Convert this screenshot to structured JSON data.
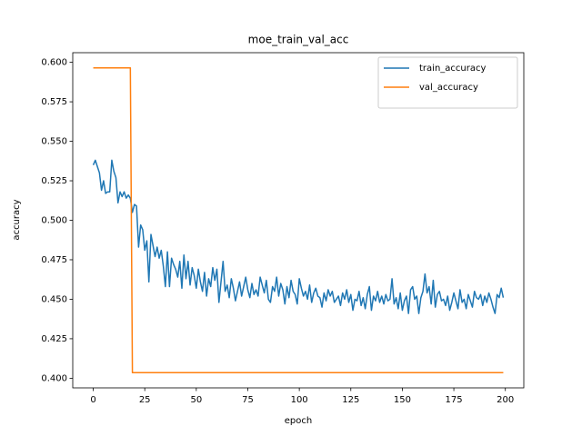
{
  "chart_data": {
    "type": "line",
    "title": "moe_train_val_acc",
    "x_label": "epoch",
    "y_label": "accuracy",
    "x": [
      0,
      1,
      2,
      3,
      4,
      5,
      6,
      7,
      8,
      9,
      10,
      11,
      12,
      13,
      14,
      15,
      16,
      17,
      18,
      19,
      20,
      21,
      22,
      23,
      24,
      25,
      26,
      27,
      28,
      29,
      30,
      31,
      32,
      33,
      34,
      35,
      36,
      37,
      38,
      39,
      40,
      41,
      42,
      43,
      44,
      45,
      46,
      47,
      48,
      49,
      50,
      51,
      52,
      53,
      54,
      55,
      56,
      57,
      58,
      59,
      60,
      61,
      62,
      63,
      64,
      65,
      66,
      67,
      68,
      69,
      70,
      71,
      72,
      73,
      74,
      75,
      76,
      77,
      78,
      79,
      80,
      81,
      82,
      83,
      84,
      85,
      86,
      87,
      88,
      89,
      90,
      91,
      92,
      93,
      94,
      95,
      96,
      97,
      98,
      99,
      100,
      101,
      102,
      103,
      104,
      105,
      106,
      107,
      108,
      109,
      110,
      111,
      112,
      113,
      114,
      115,
      116,
      117,
      118,
      119,
      120,
      121,
      122,
      123,
      124,
      125,
      126,
      127,
      128,
      129,
      130,
      131,
      132,
      133,
      134,
      135,
      136,
      137,
      138,
      139,
      140,
      141,
      142,
      143,
      144,
      145,
      146,
      147,
      148,
      149,
      150,
      151,
      152,
      153,
      154,
      155,
      156,
      157,
      158,
      159,
      160,
      161,
      162,
      163,
      164,
      165,
      166,
      167,
      168,
      169,
      170,
      171,
      172,
      173,
      174,
      175,
      176,
      177,
      178,
      179,
      180,
      181,
      182,
      183,
      184,
      185,
      186,
      187,
      188,
      189,
      190,
      191,
      192,
      193,
      194,
      195,
      196,
      197,
      198,
      199
    ],
    "series": [
      {
        "name": "train_accuracy",
        "color": "#1f77b4",
        "values": [
          0.535,
          0.538,
          0.534,
          0.53,
          0.519,
          0.525,
          0.517,
          0.518,
          0.518,
          0.538,
          0.531,
          0.527,
          0.511,
          0.518,
          0.515,
          0.518,
          0.514,
          0.516,
          0.514,
          0.505,
          0.51,
          0.509,
          0.483,
          0.497,
          0.494,
          0.481,
          0.487,
          0.461,
          0.491,
          0.484,
          0.477,
          0.483,
          0.476,
          0.481,
          0.471,
          0.458,
          0.48,
          0.458,
          0.476,
          0.472,
          0.469,
          0.464,
          0.474,
          0.457,
          0.478,
          0.463,
          0.474,
          0.459,
          0.47,
          0.465,
          0.457,
          0.469,
          0.461,
          0.455,
          0.467,
          0.452,
          0.463,
          0.458,
          0.47,
          0.462,
          0.469,
          0.448,
          0.461,
          0.474,
          0.455,
          0.459,
          0.451,
          0.463,
          0.457,
          0.449,
          0.455,
          0.461,
          0.452,
          0.458,
          0.464,
          0.456,
          0.451,
          0.46,
          0.453,
          0.456,
          0.452,
          0.464,
          0.459,
          0.454,
          0.462,
          0.45,
          0.448,
          0.458,
          0.455,
          0.464,
          0.452,
          0.46,
          0.456,
          0.447,
          0.458,
          0.451,
          0.462,
          0.455,
          0.453,
          0.447,
          0.463,
          0.457,
          0.452,
          0.455,
          0.45,
          0.459,
          0.448,
          0.454,
          0.457,
          0.452,
          0.451,
          0.445,
          0.454,
          0.449,
          0.456,
          0.452,
          0.455,
          0.448,
          0.45,
          0.452,
          0.446,
          0.454,
          0.45,
          0.456,
          0.448,
          0.453,
          0.443,
          0.45,
          0.449,
          0.455,
          0.446,
          0.451,
          0.444,
          0.453,
          0.458,
          0.443,
          0.452,
          0.449,
          0.455,
          0.448,
          0.452,
          0.447,
          0.453,
          0.449,
          0.45,
          0.463,
          0.447,
          0.451,
          0.444,
          0.454,
          0.443,
          0.449,
          0.452,
          0.441,
          0.456,
          0.458,
          0.45,
          0.452,
          0.441,
          0.451,
          0.455,
          0.466,
          0.454,
          0.458,
          0.447,
          0.462,
          0.445,
          0.453,
          0.455,
          0.449,
          0.45,
          0.446,
          0.452,
          0.443,
          0.448,
          0.454,
          0.449,
          0.444,
          0.456,
          0.448,
          0.45,
          0.444,
          0.453,
          0.449,
          0.445,
          0.455,
          0.451,
          0.45,
          0.453,
          0.446,
          0.452,
          0.448,
          0.454,
          0.45,
          0.445,
          0.441,
          0.453,
          0.451,
          0.457,
          0.451
        ]
      },
      {
        "name": "val_accuracy",
        "color": "#ff7f0e",
        "values": [
          0.5965,
          0.5965,
          0.5965,
          0.5965,
          0.5965,
          0.5965,
          0.5965,
          0.5965,
          0.5965,
          0.5965,
          0.5965,
          0.5965,
          0.5965,
          0.5965,
          0.5965,
          0.5965,
          0.5965,
          0.5965,
          0.5965,
          0.4035,
          0.4035,
          0.4035,
          0.4035,
          0.4035,
          0.4035,
          0.4035,
          0.4035,
          0.4035,
          0.4035,
          0.4035,
          0.4035,
          0.4035,
          0.4035,
          0.4035,
          0.4035,
          0.4035,
          0.4035,
          0.4035,
          0.4035,
          0.4035,
          0.4035,
          0.4035,
          0.4035,
          0.4035,
          0.4035,
          0.4035,
          0.4035,
          0.4035,
          0.4035,
          0.4035,
          0.4035,
          0.4035,
          0.4035,
          0.4035,
          0.4035,
          0.4035,
          0.4035,
          0.4035,
          0.4035,
          0.4035,
          0.4035,
          0.4035,
          0.4035,
          0.4035,
          0.4035,
          0.4035,
          0.4035,
          0.4035,
          0.4035,
          0.4035,
          0.4035,
          0.4035,
          0.4035,
          0.4035,
          0.4035,
          0.4035,
          0.4035,
          0.4035,
          0.4035,
          0.4035,
          0.4035,
          0.4035,
          0.4035,
          0.4035,
          0.4035,
          0.4035,
          0.4035,
          0.4035,
          0.4035,
          0.4035,
          0.4035,
          0.4035,
          0.4035,
          0.4035,
          0.4035,
          0.4035,
          0.4035,
          0.4035,
          0.4035,
          0.4035,
          0.4035,
          0.4035,
          0.4035,
          0.4035,
          0.4035,
          0.4035,
          0.4035,
          0.4035,
          0.4035,
          0.4035,
          0.4035,
          0.4035,
          0.4035,
          0.4035,
          0.4035,
          0.4035,
          0.4035,
          0.4035,
          0.4035,
          0.4035,
          0.4035,
          0.4035,
          0.4035,
          0.4035,
          0.4035,
          0.4035,
          0.4035,
          0.4035,
          0.4035,
          0.4035,
          0.4035,
          0.4035,
          0.4035,
          0.4035,
          0.4035,
          0.4035,
          0.4035,
          0.4035,
          0.4035,
          0.4035,
          0.4035,
          0.4035,
          0.4035,
          0.4035,
          0.4035,
          0.4035,
          0.4035,
          0.4035,
          0.4035,
          0.4035,
          0.4035,
          0.4035,
          0.4035,
          0.4035,
          0.4035,
          0.4035,
          0.4035,
          0.4035,
          0.4035,
          0.4035,
          0.4035,
          0.4035,
          0.4035,
          0.4035,
          0.4035,
          0.4035,
          0.4035,
          0.4035,
          0.4035,
          0.4035,
          0.4035,
          0.4035,
          0.4035,
          0.4035,
          0.4035,
          0.4035,
          0.4035,
          0.4035,
          0.4035,
          0.4035,
          0.4035,
          0.4035,
          0.4035,
          0.4035,
          0.4035,
          0.4035,
          0.4035,
          0.4035,
          0.4035,
          0.4035,
          0.4035,
          0.4035,
          0.4035,
          0.4035,
          0.4035,
          0.4035,
          0.4035,
          0.4035,
          0.4035,
          0.4035
        ]
      }
    ],
    "xlim": [
      -9.95,
      208.95
    ],
    "xticks": [
      0,
      25,
      50,
      75,
      100,
      125,
      150,
      175,
      200
    ],
    "ylim": [
      0.3939,
      0.6061
    ],
    "yticks": [
      {
        "value": 0.4,
        "label": "0.400"
      },
      {
        "value": 0.425,
        "label": "0.425"
      },
      {
        "value": 0.45,
        "label": "0.450"
      },
      {
        "value": 0.475,
        "label": "0.475"
      },
      {
        "value": 0.5,
        "label": "0.500"
      },
      {
        "value": 0.525,
        "label": "0.525"
      },
      {
        "value": 0.55,
        "label": "0.550"
      },
      {
        "value": 0.575,
        "label": "0.575"
      },
      {
        "value": 0.6,
        "label": "0.600"
      }
    ],
    "grid": false,
    "legend": "upper right"
  }
}
